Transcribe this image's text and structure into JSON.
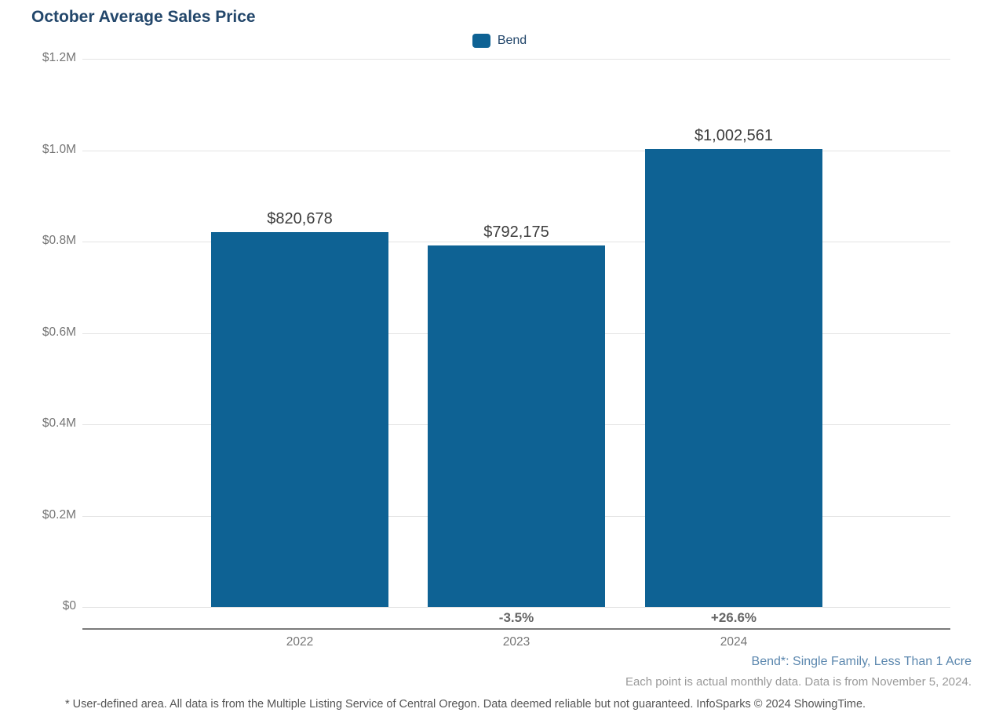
{
  "header": {
    "title": "October Average Sales Price"
  },
  "legend": {
    "items": [
      {
        "label": "Bend",
        "color": "#0e6294"
      }
    ]
  },
  "chart_data": {
    "type": "bar",
    "title": "October Average Sales Price",
    "categories": [
      "2022",
      "2023",
      "2024"
    ],
    "series": [
      {
        "name": "Bend",
        "color": "#0e6294",
        "values": [
          820678,
          792175,
          1002561
        ]
      }
    ],
    "value_labels": [
      "$820,678",
      "$792,175",
      "$1,002,561"
    ],
    "pct_change_labels": [
      "",
      "-3.5%",
      "+26.6%"
    ],
    "xlabel": "",
    "ylabel": "",
    "ylim": [
      0,
      1200000
    ],
    "yticks": [
      {
        "value": 0,
        "label": "$0"
      },
      {
        "value": 200000,
        "label": "$0.2M"
      },
      {
        "value": 400000,
        "label": "$0.4M"
      },
      {
        "value": 600000,
        "label": "$0.6M"
      },
      {
        "value": 800000,
        "label": "$0.8M"
      },
      {
        "value": 1000000,
        "label": "$1.0M"
      },
      {
        "value": 1200000,
        "label": "$1.2M"
      }
    ],
    "grid": "horizontal",
    "legend_position": "top-center"
  },
  "footer": {
    "series_definition": "Bend*: Single Family, Less Than 1 Acre",
    "data_note": "Each point is actual monthly data. Data is from November 5, 2024.",
    "disclaimer": "* User-defined area. All data is from the Multiple Listing Service of Central Oregon. Data deemed reliable but not guaranteed. InfoSparks © 2024 ShowingTime."
  },
  "colors": {
    "background": "#ffffff",
    "bar": "#0e6294",
    "title_text": "#23476b",
    "legend_text": "#23476b",
    "value_label": "#3d3d3d",
    "pct_label": "#666666",
    "axis_labels": "#757575",
    "gridline": "#e4e4e4",
    "axis_line": "#7a7a7a",
    "definition_text": "#5b87ae",
    "note_text": "#999999",
    "disclaimer_text": "#555555"
  }
}
